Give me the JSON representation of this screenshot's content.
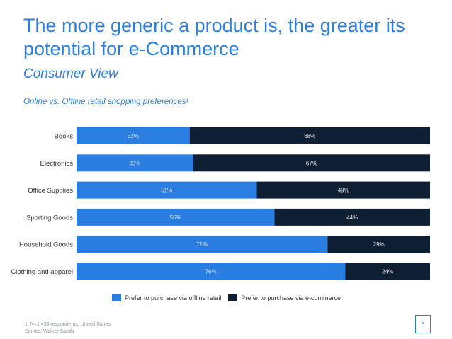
{
  "slide": {
    "title": "The more generic a product is, the greater its potential for e-Commerce",
    "subtitle": "Consumer View",
    "footnote_line1": "1: N=1,433 respondents; United States",
    "footnote_line2": "Source: Walker Sands",
    "page_number": "6"
  },
  "colors": {
    "accent": "#2a7de1",
    "offline": "#2a7de1",
    "ecommerce": "#0f1f33"
  },
  "chart_data": {
    "type": "bar",
    "orientation": "horizontal",
    "stacked": true,
    "percent_stacked": true,
    "title": "Online vs. Offline retail shopping preferences¹",
    "categories": [
      "Books",
      "Electronics",
      "Office Supplies",
      "Sporting Goods",
      "Household Goods",
      "Clothing and apparel"
    ],
    "series": [
      {
        "name": "Prefer to purchase via offline retail",
        "values": [
          32,
          33,
          51,
          56,
          71,
          76
        ],
        "labels": [
          "32%",
          "33%",
          "51%",
          "56%",
          "71%",
          "76%"
        ]
      },
      {
        "name": "Prefer to purchase via e-commerce",
        "values": [
          68,
          67,
          49,
          44,
          29,
          24
        ],
        "labels": [
          "68%",
          "67%",
          "49%",
          "44%",
          "29%",
          "24%"
        ]
      }
    ],
    "xlim": [
      0,
      100
    ],
    "grid": false,
    "legend_position": "bottom"
  }
}
